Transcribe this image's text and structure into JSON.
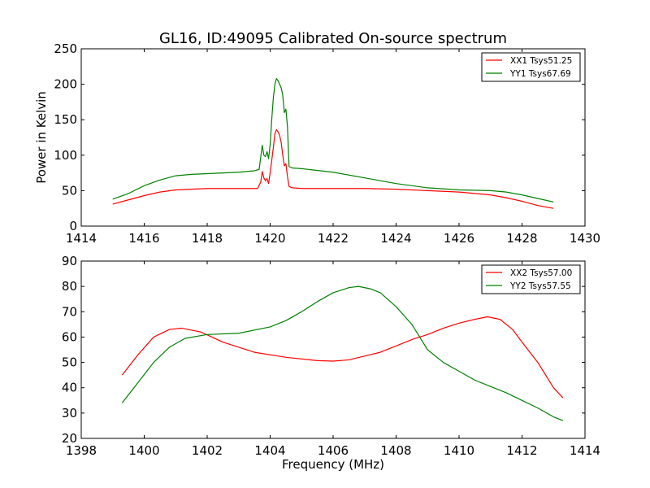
{
  "figure_title": "GL16, ID:49095 Calibrated On-source spectrum",
  "chart_data": [
    {
      "type": "line",
      "ylabel": "Power in Kelvin",
      "xlabel": "",
      "xlim": [
        1414,
        1430
      ],
      "ylim": [
        0,
        250
      ],
      "xticks": [
        1414,
        1416,
        1418,
        1420,
        1422,
        1424,
        1426,
        1428,
        1430
      ],
      "yticks": [
        0,
        50,
        100,
        150,
        200,
        250
      ],
      "legend_position": "top-right",
      "series": [
        {
          "name": "XX1 Tsys51.25",
          "color": "#ff0000",
          "x": [
            1415.0,
            1415.5,
            1416.0,
            1416.5,
            1417.0,
            1417.5,
            1418.0,
            1418.5,
            1419.0,
            1419.5,
            1419.6,
            1419.7,
            1419.75,
            1419.8,
            1419.85,
            1419.9,
            1419.95,
            1420.0,
            1420.1,
            1420.15,
            1420.2,
            1420.25,
            1420.3,
            1420.35,
            1420.4,
            1420.45,
            1420.5,
            1420.55,
            1420.6,
            1420.7,
            1421.0,
            1422.0,
            1423.0,
            1424.0,
            1425.0,
            1426.0,
            1427.0,
            1427.5,
            1428.0,
            1428.5,
            1429.0
          ],
          "y": [
            31,
            37,
            43,
            48,
            51,
            52,
            53,
            53,
            53,
            53,
            53,
            62,
            77,
            68,
            64,
            67,
            60,
            75,
            110,
            130,
            136,
            133,
            128,
            118,
            100,
            85,
            88,
            70,
            56,
            54,
            53,
            53,
            53,
            52,
            50,
            48,
            44,
            40,
            35,
            29,
            25
          ]
        },
        {
          "name": "YY1 Tsys67.69",
          "color": "#008000",
          "x": [
            1415.0,
            1415.5,
            1416.0,
            1416.5,
            1417.0,
            1417.5,
            1418.0,
            1418.5,
            1419.0,
            1419.5,
            1419.65,
            1419.75,
            1419.8,
            1419.85,
            1419.9,
            1419.95,
            1420.0,
            1420.05,
            1420.1,
            1420.15,
            1420.2,
            1420.25,
            1420.3,
            1420.35,
            1420.4,
            1420.45,
            1420.5,
            1420.55,
            1420.6,
            1420.7,
            1421.0,
            1422.0,
            1423.0,
            1424.0,
            1425.0,
            1426.0,
            1427.0,
            1427.5,
            1428.0,
            1428.5,
            1429.0
          ],
          "y": [
            38,
            46,
            57,
            65,
            71,
            73,
            74,
            75,
            76,
            78,
            80,
            114,
            100,
            98,
            105,
            95,
            115,
            150,
            180,
            200,
            208,
            205,
            200,
            195,
            185,
            160,
            165,
            140,
            84,
            82,
            81,
            76,
            68,
            60,
            54,
            51,
            50,
            48,
            44,
            39,
            34
          ]
        }
      ]
    },
    {
      "type": "line",
      "ylabel": "",
      "xlabel": "Frequency (MHz)",
      "xlim": [
        1398,
        1414
      ],
      "ylim": [
        20,
        90
      ],
      "xticks": [
        1398,
        1400,
        1402,
        1404,
        1406,
        1408,
        1410,
        1412,
        1414
      ],
      "yticks": [
        20,
        30,
        40,
        50,
        60,
        70,
        80,
        90
      ],
      "legend_position": "top-right",
      "series": [
        {
          "name": "XX2 Tsys57.00",
          "color": "#ff0000",
          "x": [
            1399.3,
            1399.8,
            1400.3,
            1400.8,
            1401.2,
            1401.8,
            1402.5,
            1403.5,
            1404.5,
            1405.5,
            1406.0,
            1406.5,
            1407.0,
            1407.5,
            1408.0,
            1408.5,
            1409.0,
            1409.5,
            1410.0,
            1410.5,
            1410.9,
            1411.3,
            1411.7,
            1412.0,
            1412.5,
            1413.0,
            1413.3
          ],
          "y": [
            45,
            53,
            60,
            63,
            63.5,
            62,
            58,
            54,
            52,
            50.7,
            50.5,
            51,
            52.5,
            54,
            56.5,
            59,
            61,
            63.5,
            65.5,
            67,
            68,
            67,
            63,
            58,
            50,
            40,
            36
          ]
        },
        {
          "name": "YY2 Tsys57.55",
          "color": "#008000",
          "x": [
            1399.3,
            1399.8,
            1400.3,
            1400.8,
            1401.3,
            1402.0,
            1403.0,
            1404.0,
            1404.5,
            1405.0,
            1405.5,
            1406.0,
            1406.5,
            1406.8,
            1407.2,
            1407.5,
            1408.0,
            1408.5,
            1409.0,
            1409.5,
            1410.0,
            1410.5,
            1411.0,
            1411.5,
            1412.0,
            1412.5,
            1413.0,
            1413.3
          ],
          "y": [
            34,
            42,
            50,
            56,
            59.5,
            61,
            61.5,
            64,
            66.5,
            70,
            74,
            77.5,
            79.5,
            80,
            79,
            77.5,
            72,
            65,
            55,
            50,
            46.5,
            43,
            40.5,
            38,
            35,
            32,
            28.5,
            27
          ]
        }
      ]
    }
  ]
}
